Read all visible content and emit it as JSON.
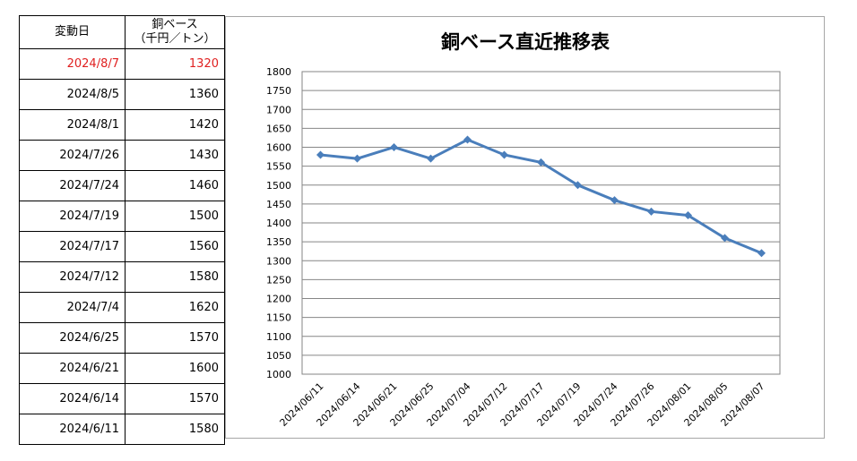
{
  "table": {
    "header_date": "変動日",
    "header_price_line1": "銅ベース",
    "header_price_line2": "（千円／トン）",
    "rows": [
      {
        "date": "2024/8/7",
        "price": "1320"
      },
      {
        "date": "2024/8/5",
        "price": "1360"
      },
      {
        "date": "2024/8/1",
        "price": "1420"
      },
      {
        "date": "2024/7/26",
        "price": "1430"
      },
      {
        "date": "2024/7/24",
        "price": "1460"
      },
      {
        "date": "2024/7/19",
        "price": "1500"
      },
      {
        "date": "2024/7/17",
        "price": "1560"
      },
      {
        "date": "2024/7/12",
        "price": "1580"
      },
      {
        "date": "2024/7/4",
        "price": "1620"
      },
      {
        "date": "2024/6/25",
        "price": "1570"
      },
      {
        "date": "2024/6/21",
        "price": "1600"
      },
      {
        "date": "2024/6/14",
        "price": "1570"
      },
      {
        "date": "2024/6/11",
        "price": "1580"
      }
    ],
    "highlight_color": "#e02020"
  },
  "chart_data": {
    "type": "line",
    "title": "銅ベース直近推移表",
    "xlabel": "",
    "ylabel": "",
    "categories": [
      "2024/06/11",
      "2024/06/14",
      "2024/06/21",
      "2024/06/25",
      "2024/07/04",
      "2024/07/12",
      "2024/07/17",
      "2024/07/19",
      "2024/07/24",
      "2024/07/26",
      "2024/08/01",
      "2024/08/05",
      "2024/08/07"
    ],
    "series": [
      {
        "values": [
          1580,
          1570,
          1600,
          1570,
          1620,
          1580,
          1560,
          1500,
          1460,
          1430,
          1420,
          1360,
          1320
        ]
      }
    ],
    "ylim": [
      1000,
      1800
    ],
    "yticks": [
      "1000",
      "1050",
      "1100",
      "1150",
      "1200",
      "1250",
      "1300",
      "1350",
      "1400",
      "1450",
      "1500",
      "1550",
      "1600",
      "1650",
      "1700",
      "1750",
      "1800"
    ],
    "grid": true,
    "legend": "none",
    "line_color": "#4a7ebb"
  }
}
